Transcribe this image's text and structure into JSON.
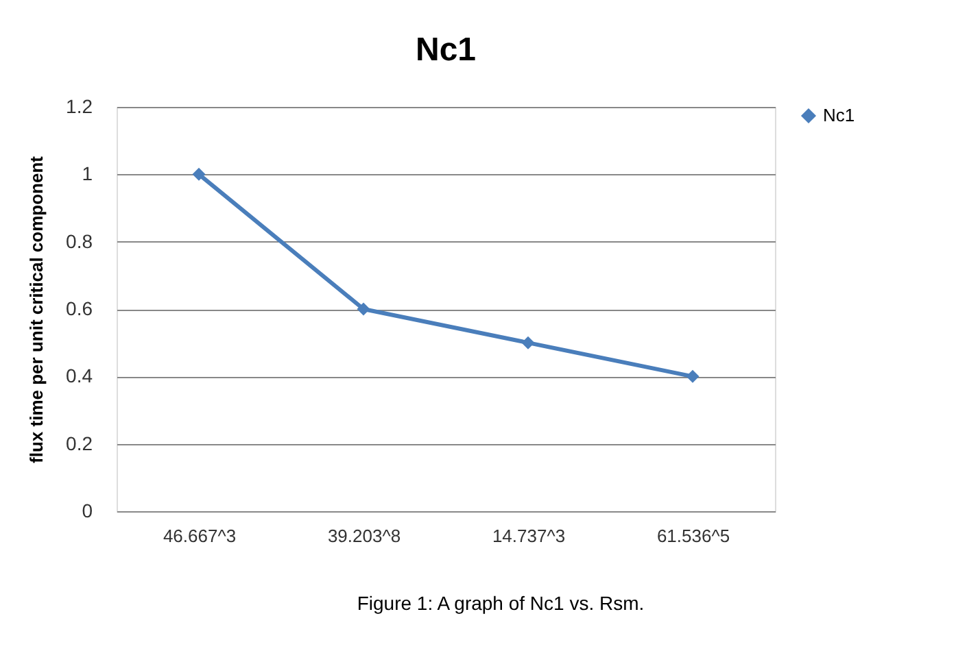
{
  "chart_data": {
    "type": "line",
    "title": "Nc1",
    "ylabel": "flux time per unit critical component",
    "categories": [
      "46.667^3",
      "39.203^8",
      "14.737^3",
      "61.536^5"
    ],
    "series": [
      {
        "name": "Nc1",
        "color": "#4a7ebb",
        "values": [
          1,
          0.6,
          0.5,
          0.4
        ]
      }
    ],
    "ylim": [
      0,
      1.2
    ],
    "yticks": [
      0,
      0.2,
      0.4,
      0.6,
      0.8,
      1,
      1.2
    ],
    "grid": "y",
    "legend": "right",
    "marker": "diamond",
    "line_style": "solid",
    "annotations": [
      "Figure 1: A graph of Nc1 vs. Rsm."
    ]
  }
}
